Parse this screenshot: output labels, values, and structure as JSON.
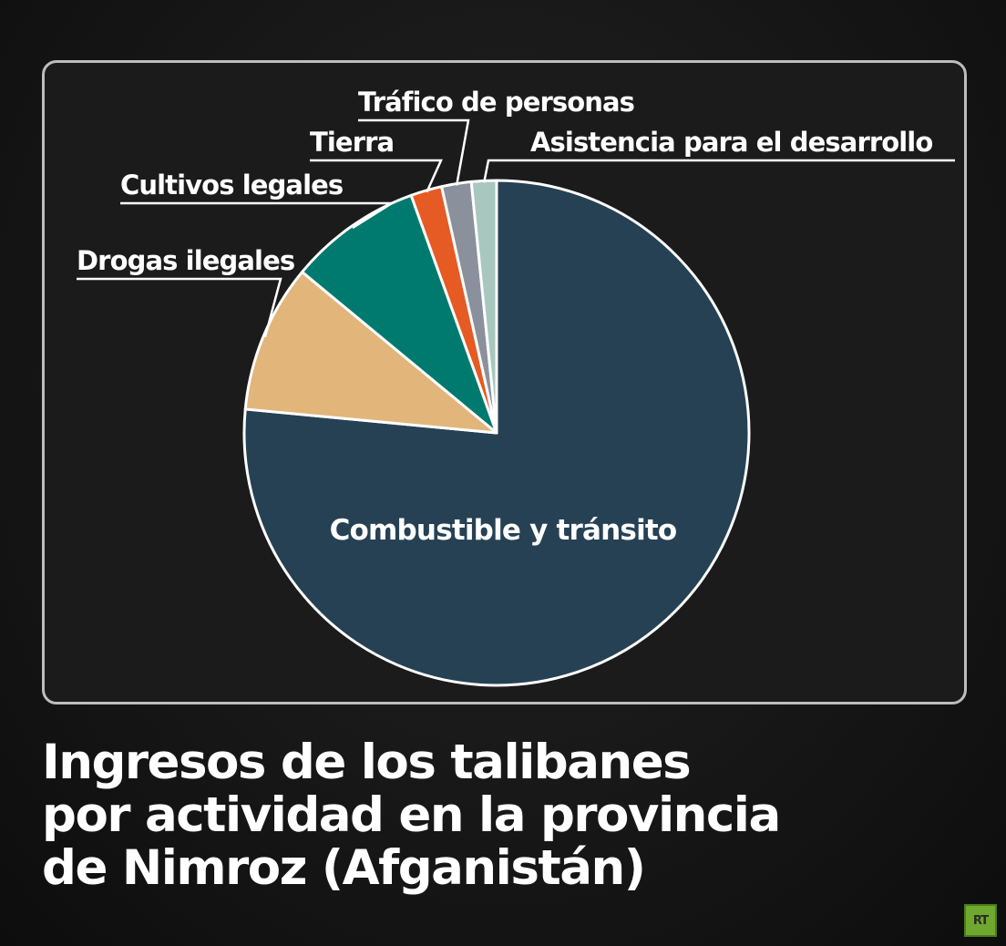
{
  "chart_data": {
    "type": "pie",
    "title": "Ingresos de los talibanes por actividad en la provincia de Nimroz (Afganistán)",
    "start_angle_deg": 0,
    "direction": "clockwise",
    "categories": [
      "Combustible y tránsito",
      "Drogas ilegales",
      "Cultivos legales",
      "Tierra",
      "Tráfico de personas",
      "Asistencia para el desarrollo"
    ],
    "values": [
      76.5,
      9.5,
      8.5,
      2.0,
      1.9,
      1.6
    ],
    "colors": [
      "#264154",
      "#e2b57b",
      "#007a6e",
      "#e65a23",
      "#8a919c",
      "#a8c7bf"
    ],
    "slice_border_color": "#ffffff",
    "labels_inside": [
      "Combustible y tránsito"
    ]
  },
  "caption": {
    "line1": "Ingresos de los talibanes",
    "line2": "por actividad en la provincia",
    "line3": "de Nimroz (Afganistán)"
  },
  "logo": {
    "text": "RT",
    "color": "#6fa82e"
  }
}
